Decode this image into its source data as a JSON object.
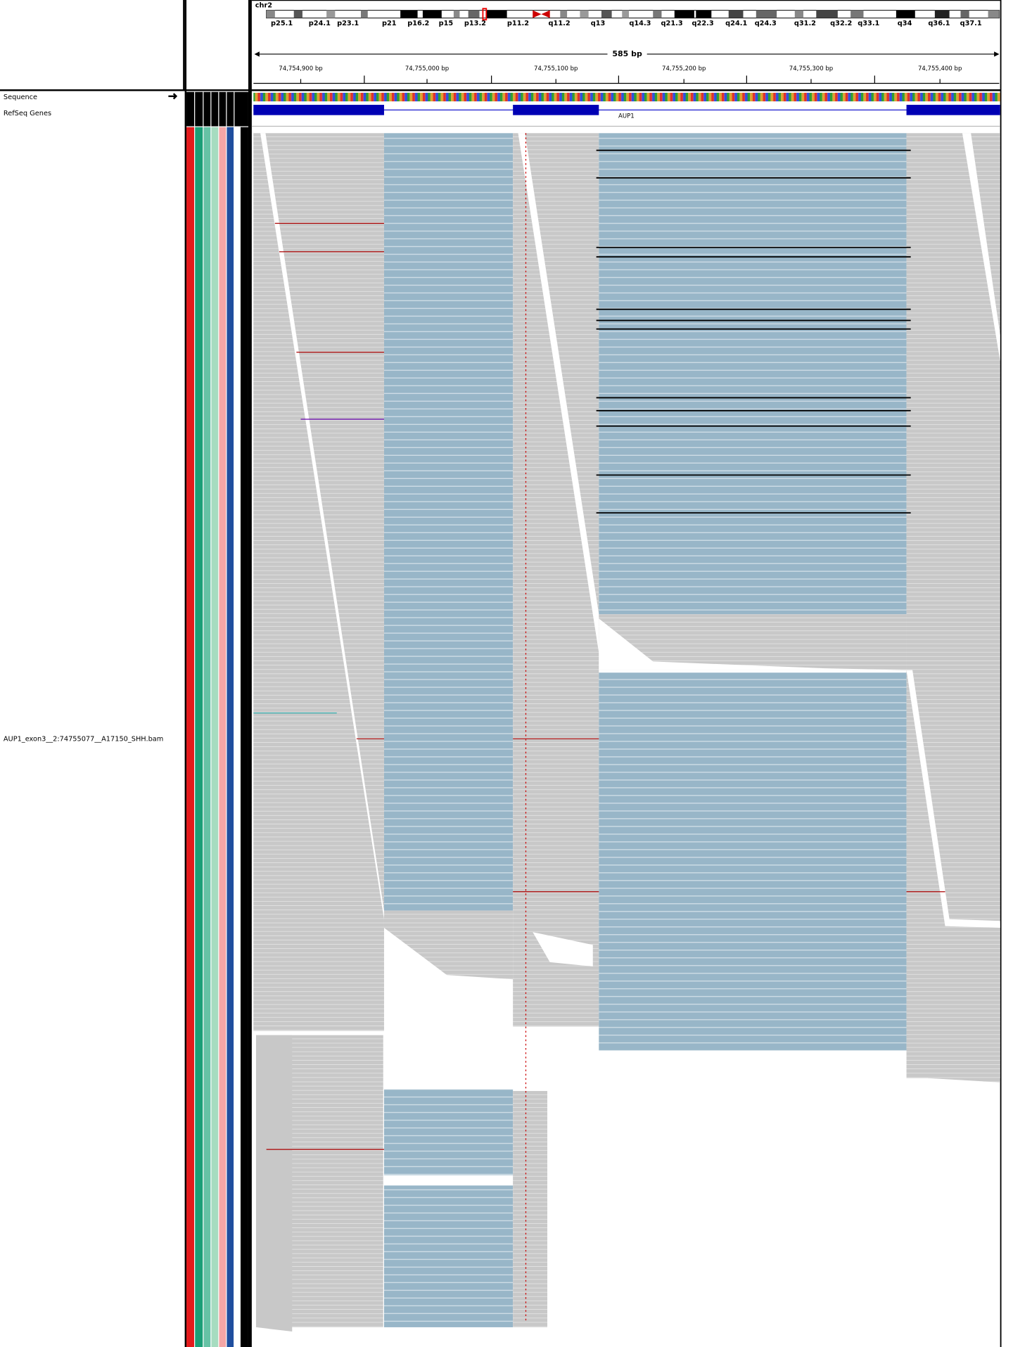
{
  "header": {
    "chromosome": "chr2",
    "ideogram_bands": [
      "p25.1",
      "p24.1",
      "p23.1",
      "p21",
      "p16.2",
      "p15",
      "p13.2",
      "p11.2",
      "q11.2",
      "q13",
      "q14.3",
      "q21.3",
      "q22.3",
      "q24.1",
      "q24.3",
      "q31.2",
      "q32.2",
      "q33.1",
      "q34",
      "q36.1",
      "q37.1"
    ],
    "span": "585 bp",
    "ruler_ticks": [
      "74,754,900 bp",
      "74,755,000 bp",
      "74,755,100 bp",
      "74,755,200 bp",
      "74,755,300 bp",
      "74,755,400 bp"
    ]
  },
  "tracks": {
    "sequence": "Sequence",
    "refseq": "RefSeq Genes",
    "gene": "AUP1",
    "alignment": "AUP1_exon3__2:74755077__A17150_SHH.bam"
  }
}
